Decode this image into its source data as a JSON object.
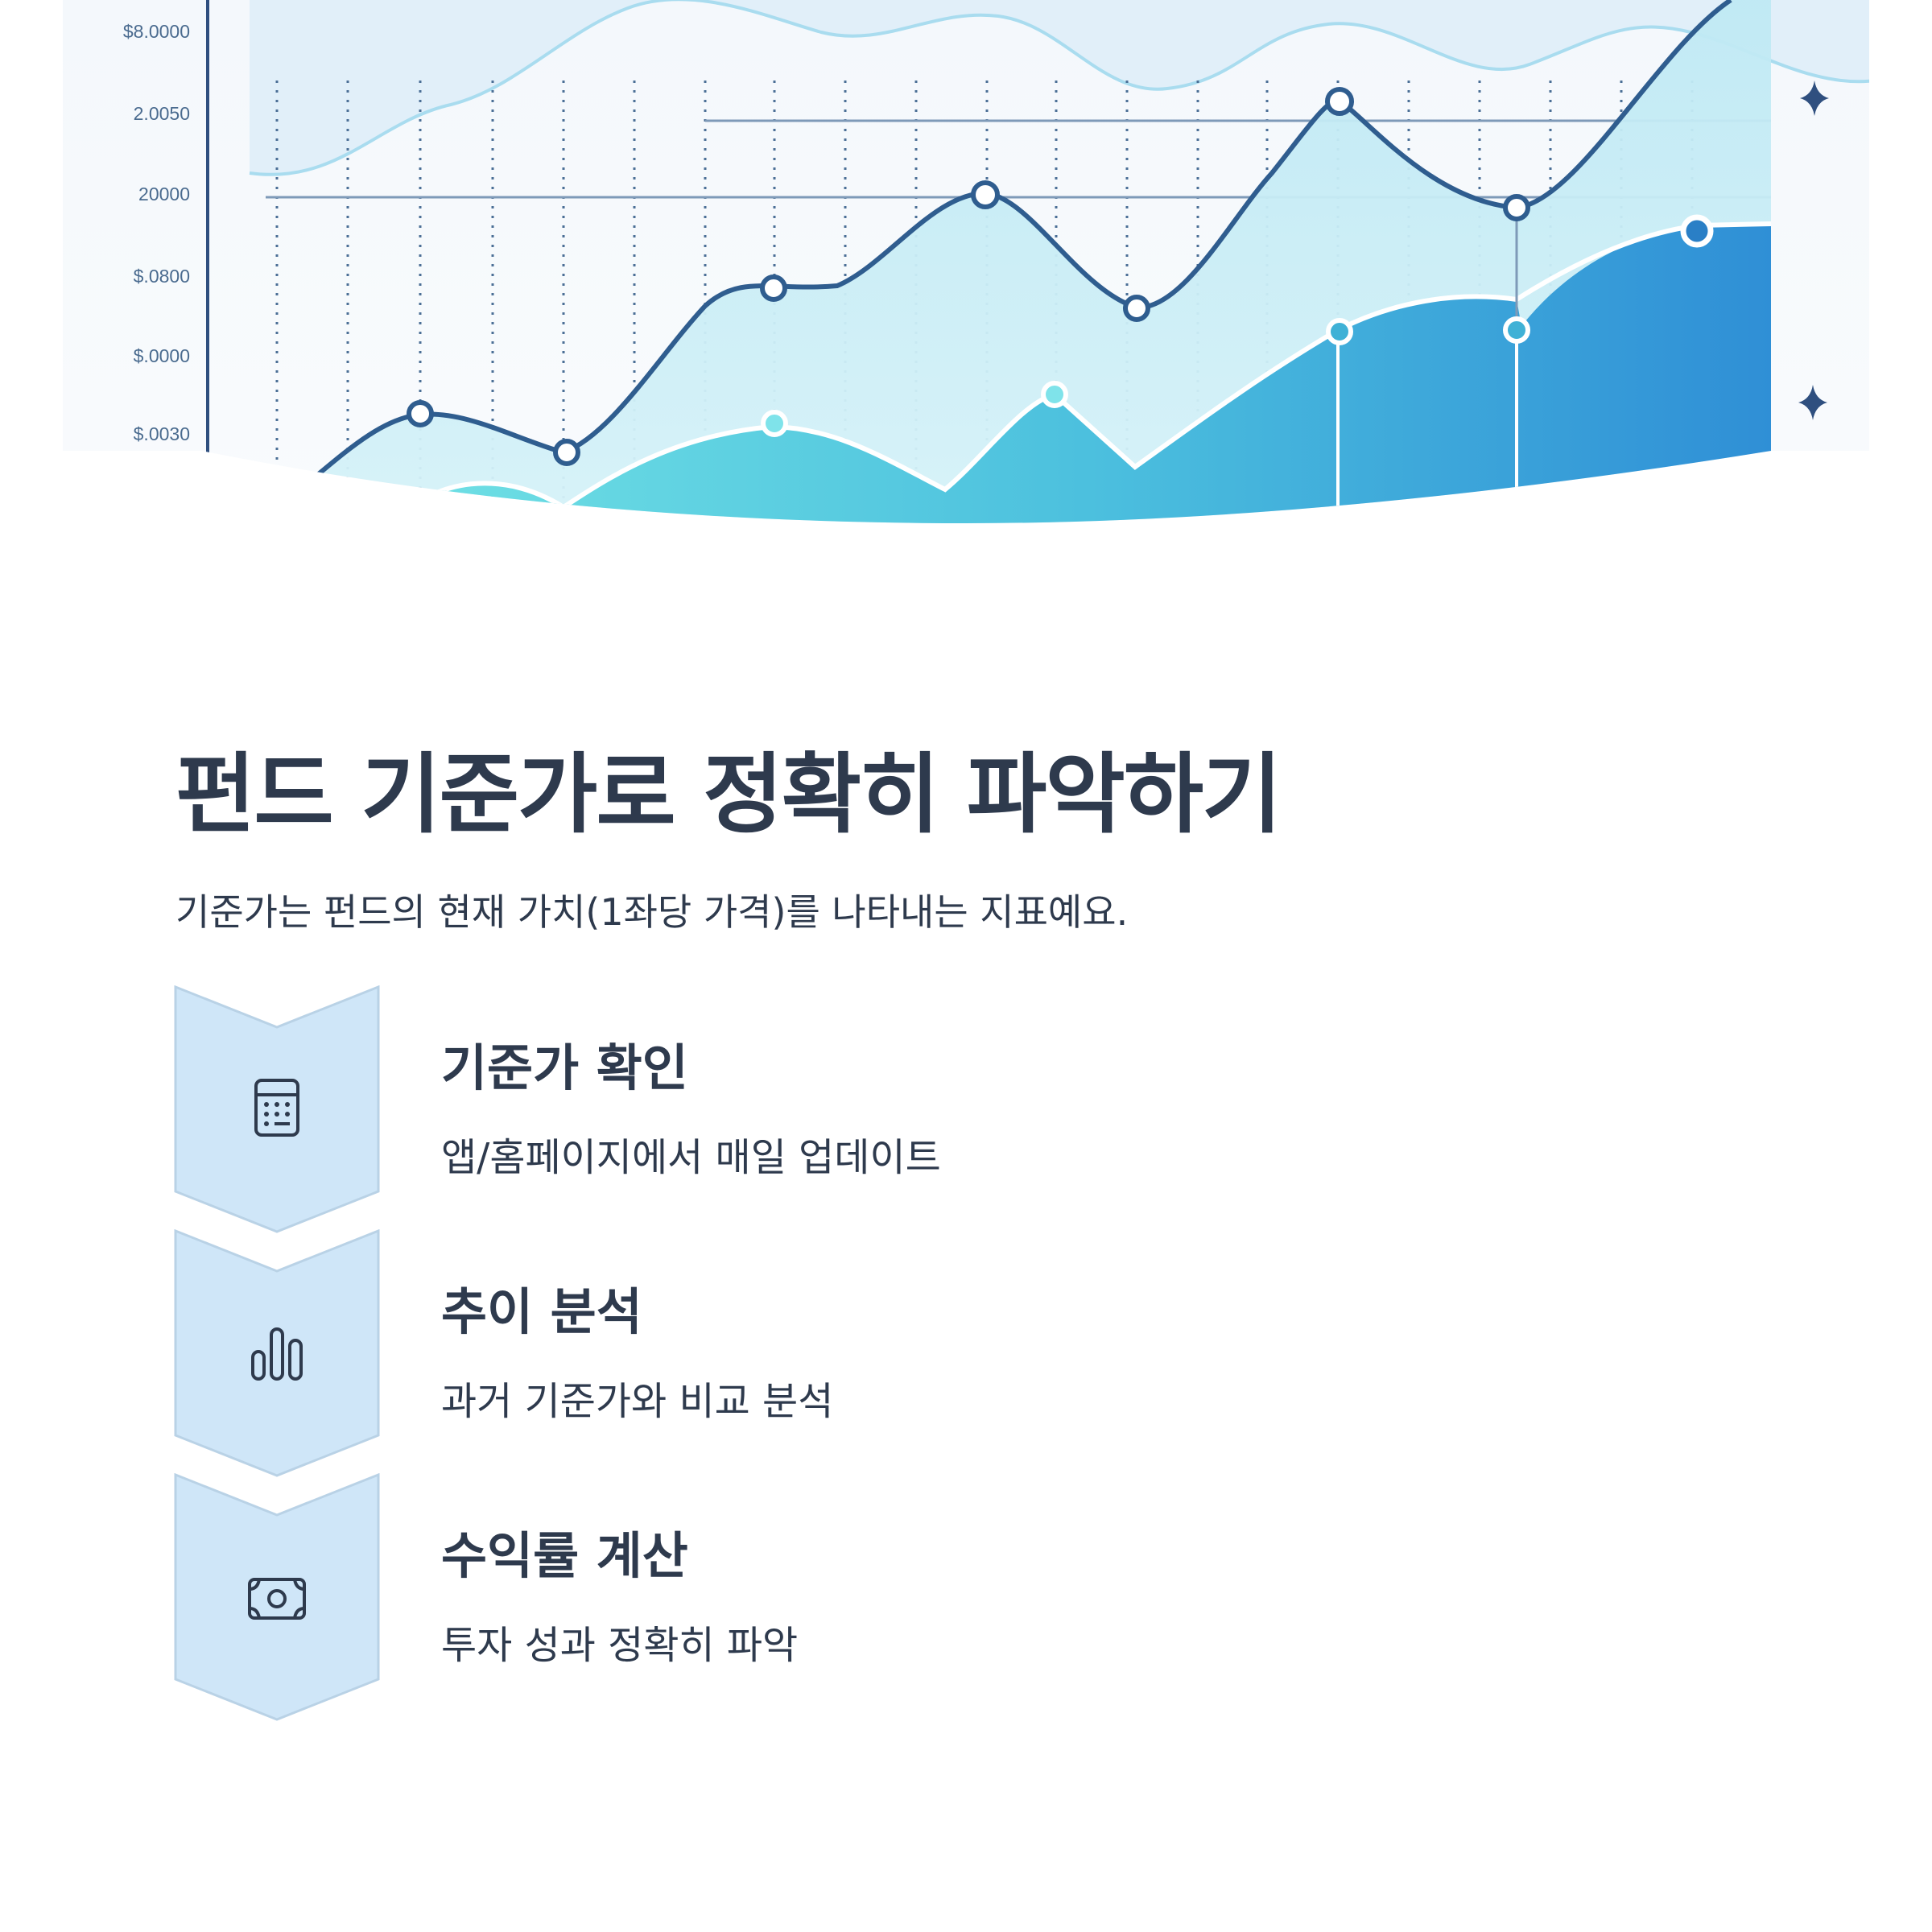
{
  "hero": {
    "y_axis_labels": [
      "$8.0000",
      "2.0050",
      "20000",
      "$.0800",
      "$.0000",
      "$.0030"
    ]
  },
  "title": "펀드 기준가로 정확히 파악하기",
  "subtitle": "기준가는 펀드의 현재 가치(1좌당 가격)를 나타내는 지표예요.",
  "steps": [
    {
      "title": "기준가 확인",
      "desc": "앱/홈페이지에서 매일 업데이트",
      "icon": "calculator-icon"
    },
    {
      "title": "추이 분석",
      "desc": "과거 기준가와 비교 분석",
      "icon": "bar-chart-icon"
    },
    {
      "title": "수익률 계산",
      "desc": "투자 성과 정확히 파악",
      "icon": "money-icon"
    }
  ],
  "colors": {
    "text": "#2e3a4d",
    "line": "#2f5d8f",
    "chevron": "#cfe5f7",
    "area_light": "#c9eef6",
    "area_dark": "#3aa0d8"
  }
}
